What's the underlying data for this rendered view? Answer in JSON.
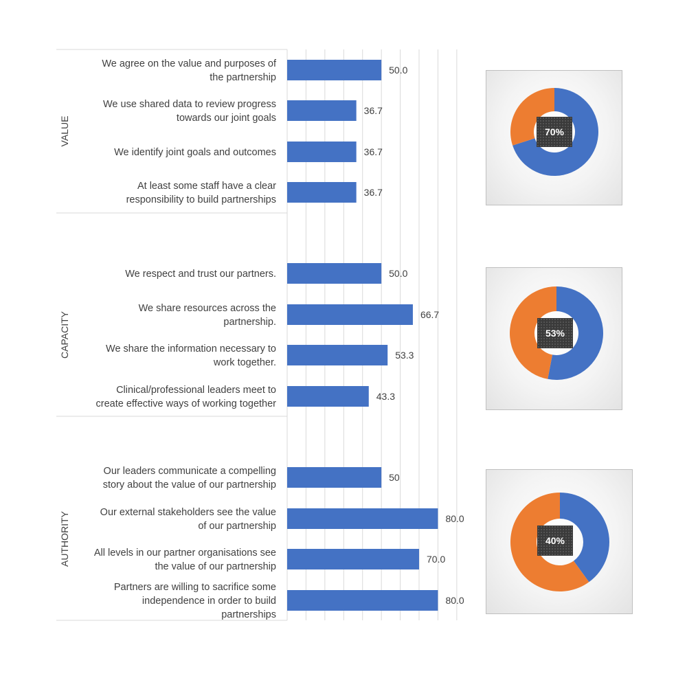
{
  "chart_data": [
    {
      "type": "bar",
      "orientation": "horizontal",
      "title": "",
      "xlabel": "",
      "ylabel": "",
      "xlim": [
        0,
        90
      ],
      "grid": "vertical gridlines",
      "bar_color": "#4472c4",
      "groups": [
        {
          "name": "VALUE",
          "items": [
            {
              "label": [
                "We agree on the value and purposes of",
                "the partnership"
              ],
              "value": 50.0,
              "value_label": "50.0"
            },
            {
              "label": [
                "We use shared data to review progress",
                "towards our joint goals"
              ],
              "value": 36.7,
              "value_label": "36.7"
            },
            {
              "label": [
                "We identify joint goals and outcomes"
              ],
              "value": 36.7,
              "value_label": "36.7"
            },
            {
              "label": [
                "At least some staff have a clear",
                "responsibility to build partnerships"
              ],
              "value": 36.7,
              "value_label": "36.7"
            }
          ]
        },
        {
          "name": "CAPACITY",
          "items": [
            {
              "label": [
                "We respect and trust our partners."
              ],
              "value": 50.0,
              "value_label": "50.0"
            },
            {
              "label": [
                "We share resources across the",
                "partnership."
              ],
              "value": 66.7,
              "value_label": "66.7"
            },
            {
              "label": [
                "We share the information necessary to",
                "work together."
              ],
              "value": 53.3,
              "value_label": "53.3"
            },
            {
              "label": [
                "Clinical/professional leaders meet to",
                "create effective ways of working together"
              ],
              "value": 43.3,
              "value_label": "43.3"
            }
          ]
        },
        {
          "name": "AUTHORITY",
          "items": [
            {
              "label": [
                "Our leaders communicate a compelling",
                "story about the value of our partnership"
              ],
              "value": 50,
              "value_label": "50"
            },
            {
              "label": [
                "Our external stakeholders see the value",
                "of our partnership"
              ],
              "value": 80.0,
              "value_label": "80.0"
            },
            {
              "label": [
                "All levels in our partner organisations see",
                "the value of our partnership"
              ],
              "value": 70.0,
              "value_label": "70.0"
            },
            {
              "label": [
                "Partners are willing to sacrifice some",
                "independence in order to build",
                "partnerships"
              ],
              "value": 80.0,
              "value_label": "80.0"
            }
          ]
        }
      ]
    },
    {
      "type": "pie",
      "variant": "donut",
      "group": "VALUE",
      "values": [
        70,
        30
      ],
      "colors": [
        "#4472c4",
        "#ed7d31"
      ],
      "center_label": "70%"
    },
    {
      "type": "pie",
      "variant": "donut",
      "group": "CAPACITY",
      "values": [
        53,
        47
      ],
      "colors": [
        "#4472c4",
        "#ed7d31"
      ],
      "center_label": "53%"
    },
    {
      "type": "pie",
      "variant": "donut",
      "group": "AUTHORITY",
      "values": [
        40,
        60
      ],
      "colors": [
        "#4472c4",
        "#ed7d31"
      ],
      "center_label": "40%"
    }
  ]
}
